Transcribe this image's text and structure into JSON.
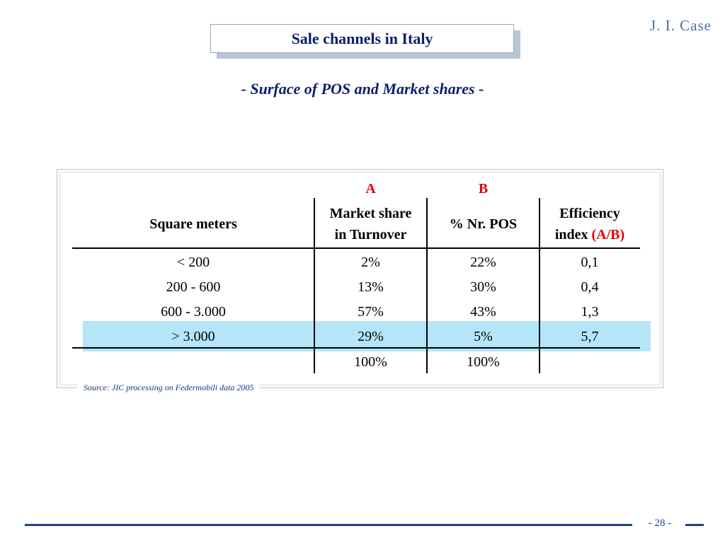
{
  "slide": {
    "title": "Sale channels in Italy",
    "subtitle": "- Surface of POS and Market shares -",
    "logo": "J. I. Case",
    "source": "Source: JIC processing on Federmobili data 2005",
    "page_number": "- 28 -"
  },
  "table": {
    "col_markers": {
      "a": "A",
      "b": "B"
    },
    "headers": {
      "square_meters": "Square meters",
      "market_share_1": "Market share",
      "market_share_2": "in Turnover",
      "nr_pos": "% Nr. POS",
      "efficiency_1": "Efficiency",
      "efficiency_2": "index",
      "efficiency_ratio": "(A/B)"
    },
    "rows": [
      {
        "sqm": "< 200",
        "market_share": "2%",
        "nr_pos": "22%",
        "efficiency": "0,1",
        "highlighted": false
      },
      {
        "sqm": "200 - 600",
        "market_share": "13%",
        "nr_pos": "30%",
        "efficiency": "0,4",
        "highlighted": false
      },
      {
        "sqm": "600 - 3.000",
        "market_share": "57%",
        "nr_pos": "43%",
        "efficiency": "1,3",
        "highlighted": false
      },
      {
        "sqm": "> 3.000",
        "market_share": "29%",
        "nr_pos": "5%",
        "efficiency": "5,7",
        "highlighted": true
      }
    ],
    "totals": {
      "market_share": "100%",
      "nr_pos": "100%"
    }
  },
  "colors": {
    "title_text": "#0b1f6b",
    "highlight_row": "#b5e5f9",
    "marker_red": "#e00000",
    "footer_blue": "#1f3f8f"
  }
}
